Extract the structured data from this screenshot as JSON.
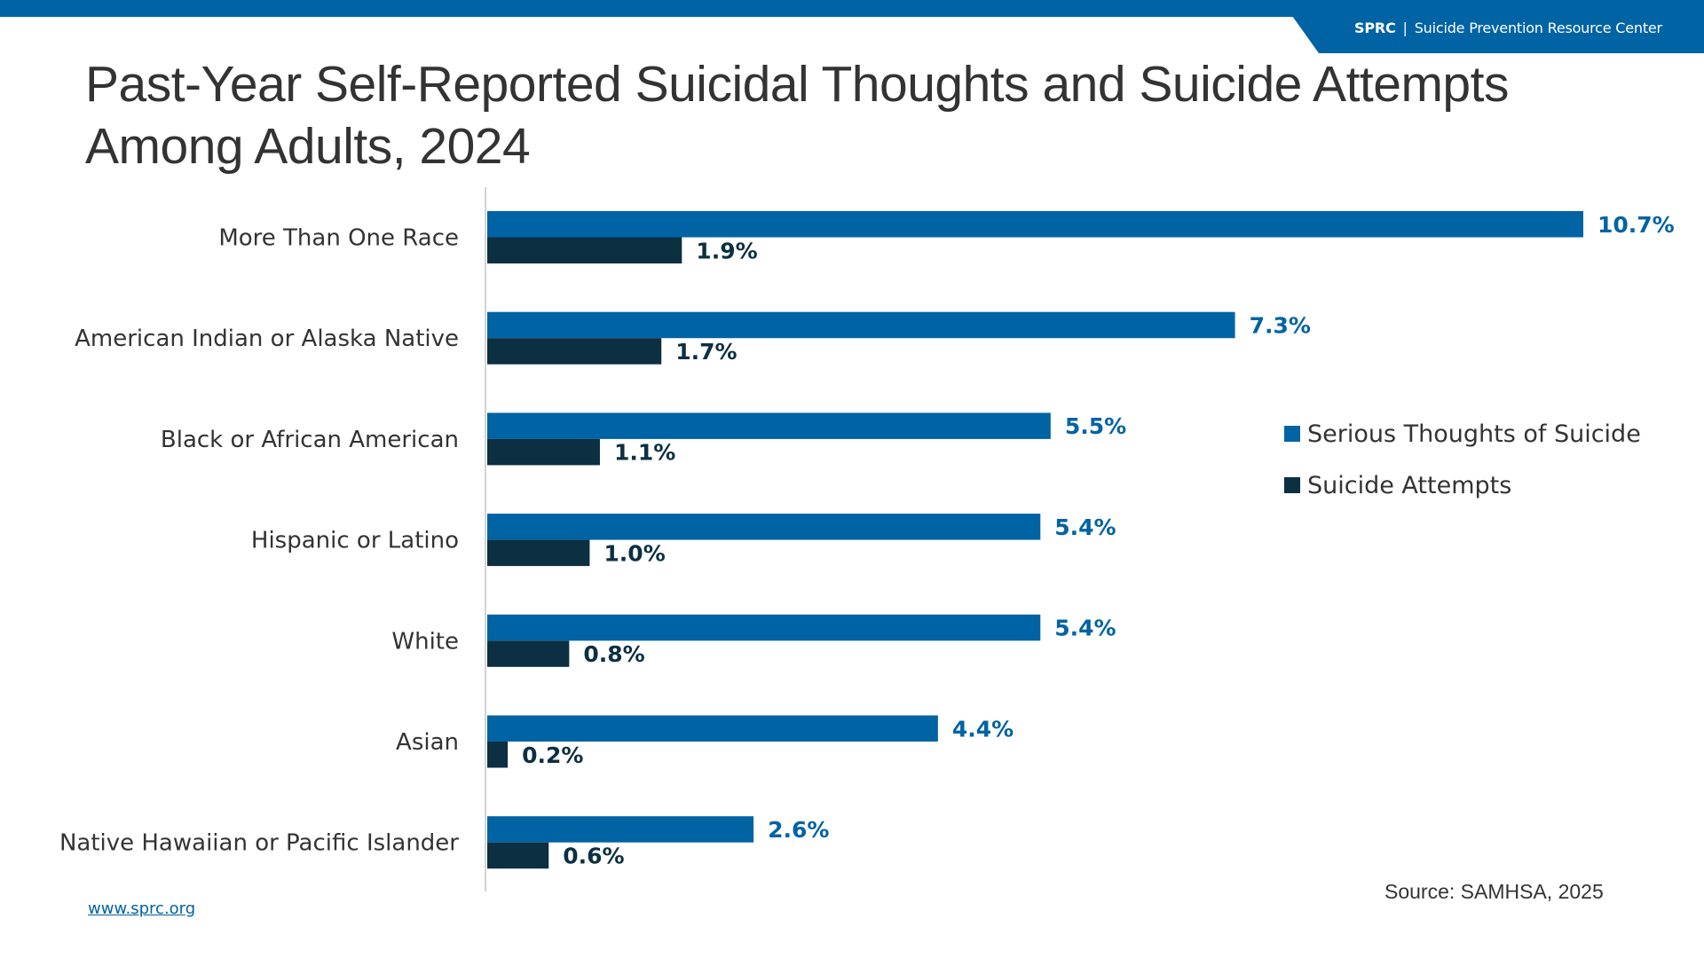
{
  "header": {
    "brand_abbr": "SPRC",
    "brand_separator": "|",
    "brand_name": "Suicide Prevention Resource Center"
  },
  "colors": {
    "primary_blue": "#0063a4",
    "dark_navy": "#0d2f42",
    "axis": "#d3d3d3",
    "text": "#333333"
  },
  "footer": {
    "source": "Source: SAMHSA, 2025",
    "website": "www.sprc.org"
  },
  "chart_data": {
    "type": "bar",
    "orientation": "horizontal",
    "title": "Past-Year Self-Reported Suicidal Thoughts and Suicide Attempts Among Adults, 2024",
    "title_lines": [
      "Past-Year Self-Reported Suicidal Thoughts and Suicide Attempts",
      "Among Adults, 2024"
    ],
    "xlabel": "",
    "ylabel": "",
    "unit": "%",
    "xlim": [
      0,
      10.7
    ],
    "grid": false,
    "legend_position": "right",
    "categories": [
      "More Than One Race",
      "American Indian or Alaska Native",
      "Black or African American",
      "Hispanic or Latino",
      "White",
      "Asian",
      "Native Hawaiian or Pacific Islander"
    ],
    "series": [
      {
        "name": "Serious Thoughts of Suicide",
        "color": "#0063a4",
        "values": [
          10.7,
          7.3,
          5.5,
          5.4,
          5.4,
          4.4,
          2.6
        ],
        "labels": [
          "10.7%",
          "7.3%",
          "5.5%",
          "5.4%",
          "5.4%",
          "4.4%",
          "2.6%"
        ]
      },
      {
        "name": "Suicide Attempts",
        "color": "#0d2f42",
        "values": [
          1.9,
          1.7,
          1.1,
          1.0,
          0.8,
          0.2,
          0.6
        ],
        "labels": [
          "1.9%",
          "1.7%",
          "1.1%",
          "1.0%",
          "0.8%",
          "0.2%",
          "0.6%"
        ]
      }
    ]
  }
}
